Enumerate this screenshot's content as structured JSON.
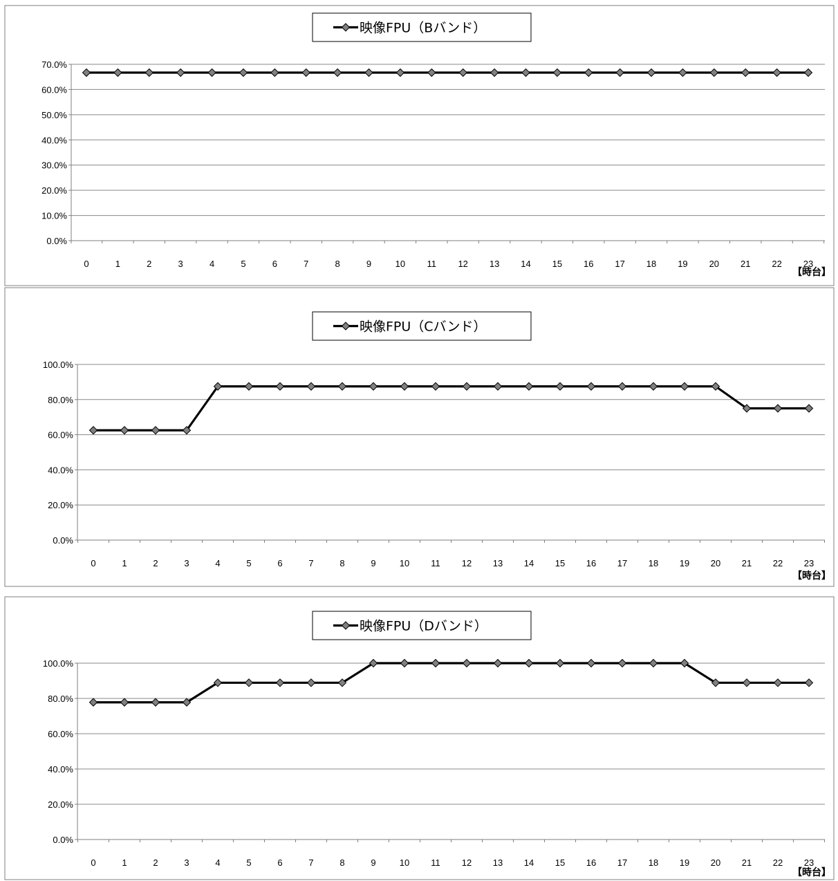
{
  "chart_data": [
    {
      "type": "line",
      "legend_position": "top-center",
      "grid": true,
      "x_unit_label": "【時台】",
      "categories": [
        "0",
        "1",
        "2",
        "3",
        "4",
        "5",
        "6",
        "7",
        "8",
        "9",
        "10",
        "11",
        "12",
        "13",
        "14",
        "15",
        "16",
        "17",
        "18",
        "19",
        "20",
        "21",
        "22",
        "23"
      ],
      "ylim": [
        0,
        70
      ],
      "yticks": [
        "0.0%",
        "10.0%",
        "20.0%",
        "30.0%",
        "40.0%",
        "50.0%",
        "60.0%",
        "70.0%"
      ],
      "series": [
        {
          "name": "映像FPU（Bバンド）",
          "values": [
            66.7,
            66.7,
            66.7,
            66.7,
            66.7,
            66.7,
            66.7,
            66.7,
            66.7,
            66.7,
            66.7,
            66.7,
            66.7,
            66.7,
            66.7,
            66.7,
            66.7,
            66.7,
            66.7,
            66.7,
            66.7,
            66.7,
            66.7,
            66.7
          ]
        }
      ]
    },
    {
      "type": "line",
      "legend_position": "top-center",
      "grid": true,
      "x_unit_label": "【時台】",
      "categories": [
        "0",
        "1",
        "2",
        "3",
        "4",
        "5",
        "6",
        "7",
        "8",
        "9",
        "10",
        "11",
        "12",
        "13",
        "14",
        "15",
        "16",
        "17",
        "18",
        "19",
        "20",
        "21",
        "22",
        "23"
      ],
      "ylim": [
        0,
        100
      ],
      "yticks": [
        "0.0%",
        "20.0%",
        "40.0%",
        "60.0%",
        "80.0%",
        "100.0%"
      ],
      "series": [
        {
          "name": "映像FPU（Cバンド）",
          "values": [
            62.5,
            62.5,
            62.5,
            62.5,
            87.5,
            87.5,
            87.5,
            87.5,
            87.5,
            87.5,
            87.5,
            87.5,
            87.5,
            87.5,
            87.5,
            87.5,
            87.5,
            87.5,
            87.5,
            87.5,
            87.5,
            75,
            75,
            75
          ]
        }
      ]
    },
    {
      "type": "line",
      "legend_position": "top-center",
      "grid": true,
      "x_unit_label": "【時台】",
      "categories": [
        "0",
        "1",
        "2",
        "3",
        "4",
        "5",
        "6",
        "7",
        "8",
        "9",
        "10",
        "11",
        "12",
        "13",
        "14",
        "15",
        "16",
        "17",
        "18",
        "19",
        "20",
        "21",
        "22",
        "23"
      ],
      "ylim": [
        0,
        100
      ],
      "yticks": [
        "0.0%",
        "20.0%",
        "40.0%",
        "60.0%",
        "80.0%",
        "100.0%"
      ],
      "series": [
        {
          "name": "映像FPU（Dバンド）",
          "values": [
            77.8,
            77.8,
            77.8,
            77.8,
            88.9,
            88.9,
            88.9,
            88.9,
            88.9,
            100,
            100,
            100,
            100,
            100,
            100,
            100,
            100,
            100,
            100,
            100,
            88.9,
            88.9,
            88.9,
            88.9
          ]
        }
      ]
    }
  ]
}
